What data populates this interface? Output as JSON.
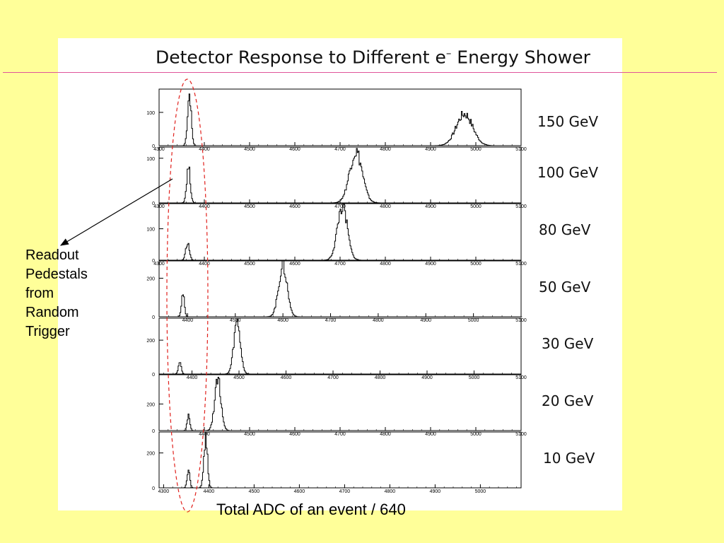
{
  "slide": {
    "title_main": "Detector Response to Different e",
    "title_sup": "–",
    "title_end": " Energy Shower",
    "xlabel": "Total ADC of an event / 640",
    "annotation": [
      "Readout",
      "Pedestals",
      "from",
      "Random",
      "Trigger"
    ]
  },
  "chart_data": [
    {
      "type": "line",
      "series_label": "150 GeV",
      "xlim": [
        4300,
        5100
      ],
      "ylim": [
        0,
        170
      ],
      "xticks": [
        4300,
        4400,
        4500,
        4600,
        4700,
        4800,
        4900,
        5000,
        5100
      ],
      "yticks": [
        0,
        100
      ],
      "peaks": [
        {
          "x": 4367,
          "height": 155,
          "sigma": 4
        },
        {
          "x": 4975,
          "height": 95,
          "sigma": 18
        }
      ]
    },
    {
      "type": "line",
      "series_label": "100 GeV",
      "xlim": [
        4300,
        5100
      ],
      "ylim": [
        0,
        125
      ],
      "xticks": [
        4300,
        4400,
        4500,
        4600,
        4700,
        4800,
        4900,
        5000,
        5100
      ],
      "yticks": [
        0,
        100
      ],
      "peaks": [
        {
          "x": 4365,
          "height": 80,
          "sigma": 4
        },
        {
          "x": 4735,
          "height": 115,
          "sigma": 14
        }
      ]
    },
    {
      "type": "line",
      "series_label": "80 GeV",
      "xlim": [
        4300,
        5100
      ],
      "ylim": [
        0,
        180
      ],
      "xticks": [
        4300,
        4400,
        4500,
        4600,
        4700,
        4800,
        4900,
        5000,
        5100
      ],
      "yticks": [
        0,
        100
      ],
      "peaks": [
        {
          "x": 4363,
          "height": 55,
          "sigma": 4
        },
        {
          "x": 4705,
          "height": 170,
          "sigma": 11
        }
      ]
    },
    {
      "type": "line",
      "series_label": "50 GeV",
      "xlim": [
        4340,
        5100
      ],
      "ylim": [
        0,
        290
      ],
      "xticks": [
        4400,
        4500,
        4600,
        4700,
        4800,
        4900,
        5000,
        5100
      ],
      "yticks": [
        0,
        200
      ],
      "peaks": [
        {
          "x": 4390,
          "height": 120,
          "sigma": 3
        },
        {
          "x": 4600,
          "height": 265,
          "sigma": 9
        }
      ]
    },
    {
      "type": "line",
      "series_label": "30 GeV",
      "xlim": [
        4330,
        5100
      ],
      "ylim": [
        0,
        330
      ],
      "xticks": [
        4400,
        4500,
        4600,
        4700,
        4800,
        4900,
        5000,
        5100
      ],
      "yticks": [
        0,
        200
      ],
      "peaks": [
        {
          "x": 4374,
          "height": 70,
          "sigma": 3
        },
        {
          "x": 4496,
          "height": 305,
          "sigma": 7
        }
      ]
    },
    {
      "type": "line",
      "series_label": "20 GeV",
      "xlim": [
        4300,
        5100
      ],
      "ylim": [
        0,
        420
      ],
      "xticks": [
        4400,
        4500,
        4600,
        4700,
        4800,
        4900,
        5000,
        5100
      ],
      "yticks": [
        0,
        200
      ],
      "peaks": [
        {
          "x": 4365,
          "height": 110,
          "sigma": 3
        },
        {
          "x": 4430,
          "height": 380,
          "sigma": 7
        }
      ]
    },
    {
      "type": "line",
      "series_label": "10 GeV",
      "xlim": [
        4290,
        5090
      ],
      "ylim": [
        0,
        320
      ],
      "xticks": [
        4300,
        4400,
        4500,
        4600,
        4700,
        4800,
        4900,
        5000
      ],
      "yticks": [
        0,
        200
      ],
      "peaks": [
        {
          "x": 4355,
          "height": 110,
          "sigma": 3
        },
        {
          "x": 4393,
          "height": 280,
          "sigma": 4
        }
      ]
    }
  ],
  "colors": {
    "background": "#ffff99",
    "panel": "#ffffff",
    "rule": "#e0559a",
    "ellipse": "#e0201c",
    "line": "#000000"
  }
}
